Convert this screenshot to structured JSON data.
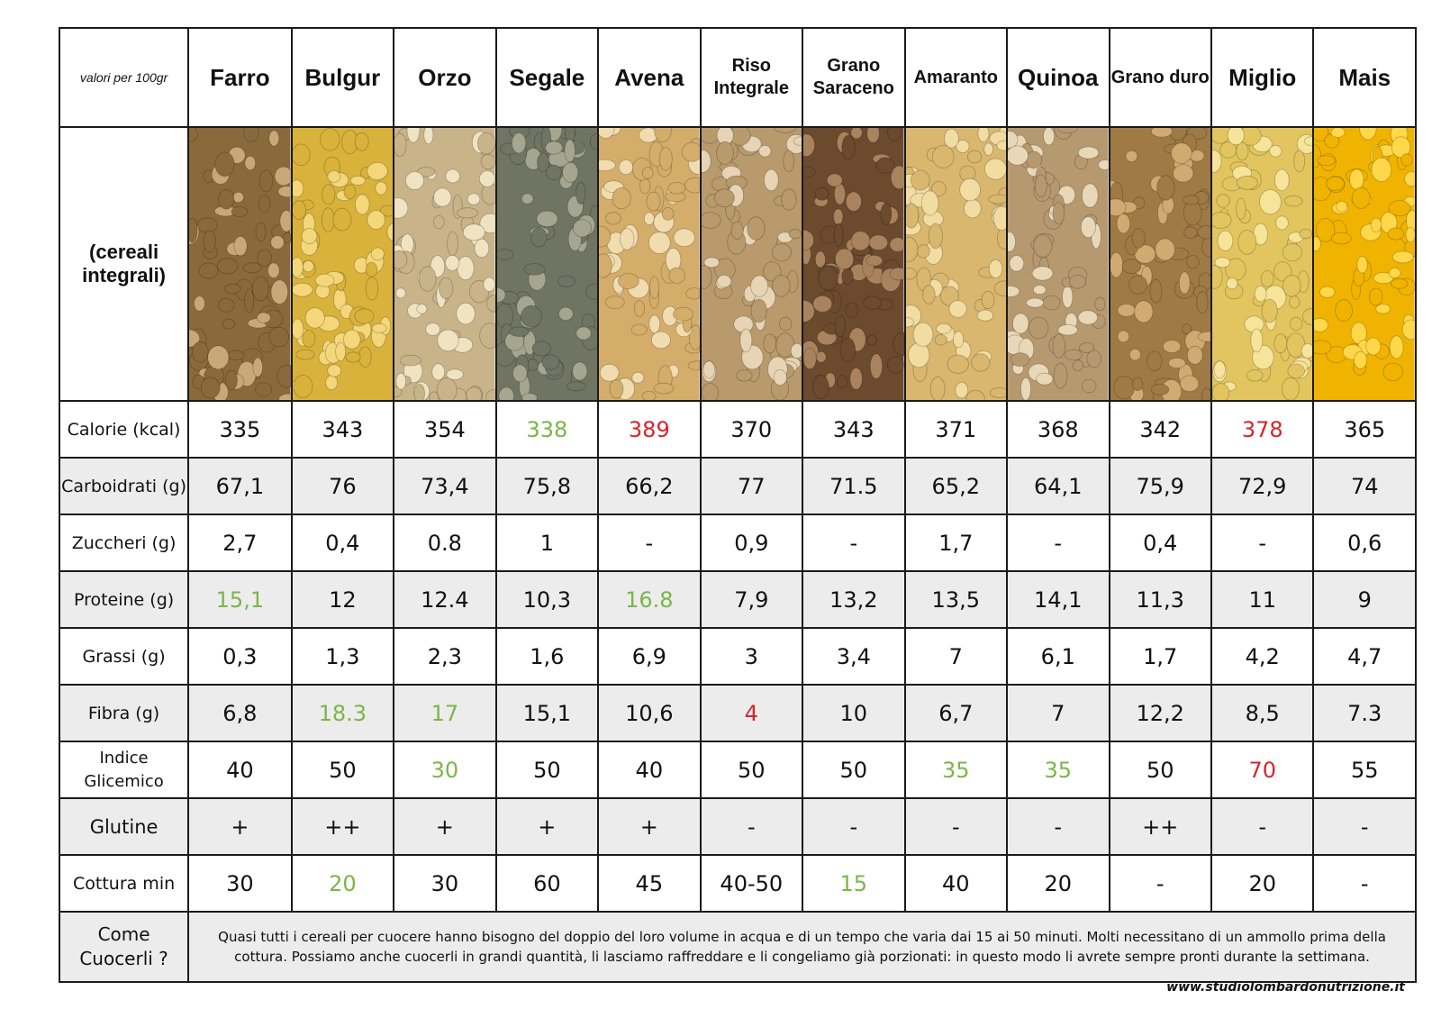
{
  "corner_label": "valori per 100gr",
  "image_row_label": "(cereali integrali)",
  "columns": [
    {
      "name": "Farro",
      "size": "big",
      "color": "#8a6a3c",
      "accent": "#c9a878"
    },
    {
      "name": "Bulgur",
      "size": "big",
      "color": "#d9b23c",
      "accent": "#f3d77a"
    },
    {
      "name": "Orzo",
      "size": "big",
      "color": "#c9b48a",
      "accent": "#efe3c2"
    },
    {
      "name": "Segale",
      "size": "big",
      "color": "#6f7463",
      "accent": "#a6a58f"
    },
    {
      "name": "Avena",
      "size": "big",
      "color": "#d4ad6a",
      "accent": "#f1dcb0"
    },
    {
      "name": "Riso Integrale",
      "size": "small",
      "color": "#b89a6c",
      "accent": "#e6d4b4"
    },
    {
      "name": "Grano Saraceno",
      "size": "small",
      "color": "#6b4a2e",
      "accent": "#a9835d"
    },
    {
      "name": "Amaranto",
      "size": "small",
      "color": "#d9b76e",
      "accent": "#f1dca2"
    },
    {
      "name": "Quinoa",
      "size": "big",
      "color": "#b79970",
      "accent": "#e8d8b8"
    },
    {
      "name": "Grano duro",
      "size": "small",
      "color": "#a07a45",
      "accent": "#d0aa70"
    },
    {
      "name": "Miglio",
      "size": "big",
      "color": "#e2c55e",
      "accent": "#f6e49a"
    },
    {
      "name": "Mais",
      "size": "big",
      "color": "#f0b400",
      "accent": "#ffd84a"
    }
  ],
  "rows": [
    {
      "label": "Calorie (kcal)",
      "alt": false,
      "type": "normal",
      "values": [
        "335",
        "343",
        "354",
        "338",
        "389",
        "370",
        "343",
        "371",
        "368",
        "342",
        "378",
        "365"
      ],
      "colors": [
        "",
        "",
        "",
        "g",
        "r",
        "",
        "",
        "",
        "",
        "",
        "r",
        ""
      ]
    },
    {
      "label": "Carboidrati (g)",
      "alt": true,
      "type": "normal",
      "values": [
        "67,1",
        "76",
        "73,4",
        "75,8",
        "66,2",
        "77",
        "71.5",
        "65,2",
        "64,1",
        "75,9",
        "72,9",
        "74"
      ],
      "colors": [
        "",
        "",
        "",
        "",
        "",
        "",
        "",
        "",
        "",
        "",
        "",
        ""
      ]
    },
    {
      "label": "Zuccheri (g)",
      "alt": false,
      "type": "normal",
      "values": [
        "2,7",
        "0,4",
        "0.8",
        "1",
        "-",
        "0,9",
        "-",
        "1,7",
        "-",
        "0,4",
        "-",
        "0,6"
      ],
      "colors": [
        "",
        "",
        "",
        "",
        "",
        "",
        "",
        "",
        "",
        "",
        "",
        ""
      ]
    },
    {
      "label": "Proteine (g)",
      "alt": true,
      "type": "normal",
      "values": [
        "15,1",
        "12",
        "12.4",
        "10,3",
        "16.8",
        "7,9",
        "13,2",
        "13,5",
        "14,1",
        "11,3",
        "11",
        "9"
      ],
      "colors": [
        "g",
        "",
        "",
        "",
        "g",
        "",
        "",
        "",
        "",
        "",
        "",
        ""
      ]
    },
    {
      "label": "Grassi (g)",
      "alt": false,
      "type": "normal",
      "values": [
        "0,3",
        "1,3",
        "2,3",
        "1,6",
        "6,9",
        "3",
        "3,4",
        "7",
        "6,1",
        "1,7",
        "4,2",
        "4,7"
      ],
      "colors": [
        "",
        "",
        "",
        "",
        "",
        "",
        "",
        "",
        "",
        "",
        "",
        ""
      ]
    },
    {
      "label": "Fibra (g)",
      "alt": true,
      "type": "normal",
      "values": [
        "6,8",
        "18.3",
        "17",
        "15,1",
        "10,6",
        "4",
        "10",
        "6,7",
        "7",
        "12,2",
        "8,5",
        "7.3"
      ],
      "colors": [
        "",
        "g",
        "g",
        "",
        "",
        "r",
        "",
        "",
        "",
        "",
        "",
        ""
      ]
    },
    {
      "label": "Indice Glicemico",
      "alt": false,
      "type": "gi",
      "values": [
        "40",
        "50",
        "30",
        "50",
        "40",
        "50",
        "50",
        "35",
        "35",
        "50",
        "70",
        "55"
      ],
      "colors": [
        "",
        "",
        "g",
        "",
        "",
        "",
        "",
        "g",
        "g",
        "",
        "r",
        ""
      ]
    },
    {
      "label": "Glutine",
      "alt": true,
      "type": "gl",
      "values": [
        "+",
        "++",
        "+",
        "+",
        "+",
        "-",
        "-",
        "-",
        "-",
        "++",
        "-",
        "-"
      ],
      "colors": [
        "",
        "",
        "",
        "",
        "",
        "",
        "",
        "",
        "",
        "",
        "",
        ""
      ]
    },
    {
      "label": "Cottura min",
      "alt": false,
      "type": "normal",
      "values": [
        "30",
        "20",
        "30",
        "60",
        "45",
        "40-50",
        "15",
        "40",
        "20",
        "-",
        "20",
        "-"
      ],
      "colors": [
        "",
        "g",
        "",
        "",
        "",
        "",
        "g",
        "",
        "",
        "",
        "",
        ""
      ]
    }
  ],
  "note": {
    "label": "Come Cuocerli ?",
    "text": "Quasi tutti i cereali per cuocere hanno bisogno del doppio del loro volume in acqua e di un tempo che varia dai 15 ai 50 minuti.  Molti necessitano di un ammollo prima della cottura. Possiamo anche cuocerli in grandi quantità, li lasciamo raffreddare e li congeliamo già porzionati: in questo modo li avrete sempre pronti durante la settimana."
  },
  "footer": "www.studiolombardonutrizione.it",
  "palette": {
    "green": "#7ab648",
    "red": "#d9232a",
    "alt_row": "#ececec"
  }
}
